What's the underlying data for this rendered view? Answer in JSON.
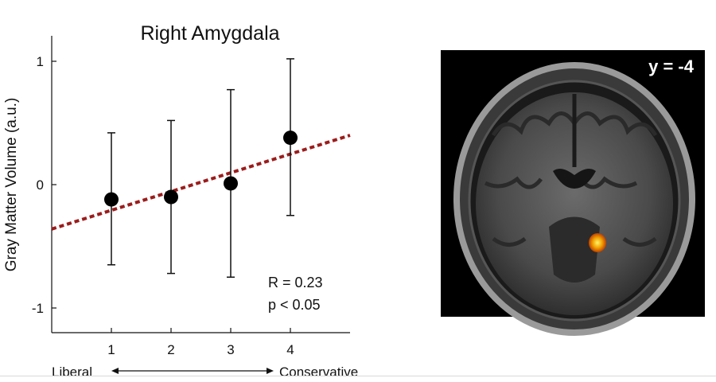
{
  "chart_data": {
    "type": "scatter",
    "title": "Right Amygdala",
    "xlabel": "",
    "ylabel": "Gray Matter Volume (a.u.)",
    "x": [
      1,
      2,
      3,
      4
    ],
    "y": [
      -0.12,
      -0.1,
      0.01,
      0.38
    ],
    "error_low": [
      -0.65,
      -0.72,
      -0.75,
      -0.25
    ],
    "error_high": [
      0.42,
      0.52,
      0.77,
      1.02
    ],
    "xlim": [
      0,
      5
    ],
    "ylim": [
      -1.2,
      1.2
    ],
    "x_ticks": [
      "1",
      "2",
      "3",
      "4"
    ],
    "y_ticks": [
      "1",
      "0",
      "-1"
    ],
    "y_tick_values": [
      1,
      0,
      -1
    ],
    "fit_line": {
      "style": "dashed",
      "color": "#9b1c1c",
      "x": [
        0,
        5
      ],
      "y": [
        -0.36,
        0.4
      ]
    },
    "annotations": [
      "R = 0.23",
      "p < 0.05"
    ],
    "axis_scale": {
      "left_label": "Liberal",
      "right_label": "Conservative"
    },
    "grid": false,
    "legend": "none"
  },
  "brain_image": {
    "label": "y = -4",
    "background_color": "#000000",
    "activation_color": "#f0a000"
  }
}
